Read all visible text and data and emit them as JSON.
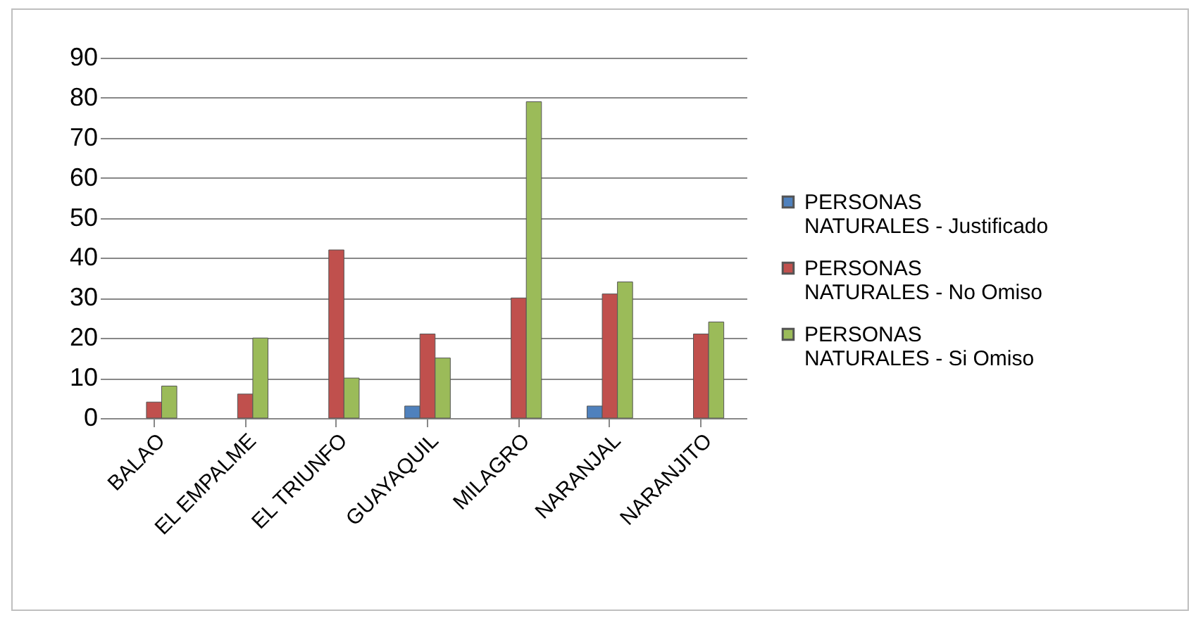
{
  "chart_data": {
    "type": "bar",
    "categories": [
      "BALAO",
      "EL EMPALME",
      "EL TRIUNFO",
      "GUAYAQUIL",
      "MILAGRO",
      "NARANJAL",
      "NARANJITO"
    ],
    "series": [
      {
        "name": "PERSONAS NATURALES - Justificado",
        "color": "#4f81bd",
        "values": [
          null,
          null,
          null,
          3,
          null,
          3,
          null
        ]
      },
      {
        "name": "PERSONAS NATURALES - No Omiso",
        "color": "#c0504d",
        "values": [
          4,
          6,
          42,
          21,
          30,
          31,
          21
        ]
      },
      {
        "name": "PERSONAS NATURALES - Si Omiso",
        "color": "#9bbb59",
        "values": [
          8,
          20,
          10,
          15,
          79,
          34,
          24
        ]
      }
    ],
    "ylim": [
      0,
      90
    ],
    "yticks": [
      0,
      10,
      20,
      30,
      40,
      50,
      60,
      70,
      80,
      90
    ],
    "grid": "y",
    "legend": "right"
  }
}
